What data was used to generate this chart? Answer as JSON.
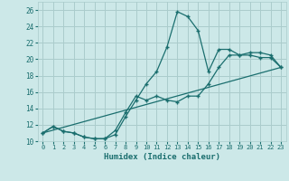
{
  "xlabel": "Humidex (Indice chaleur)",
  "bg_color": "#cce8e8",
  "grid_color": "#aacccc",
  "line_color": "#1a6e6e",
  "xlim": [
    -0.5,
    23.5
  ],
  "ylim": [
    10,
    27
  ],
  "xticks": [
    0,
    1,
    2,
    3,
    4,
    5,
    6,
    7,
    8,
    9,
    10,
    11,
    12,
    13,
    14,
    15,
    16,
    17,
    18,
    19,
    20,
    21,
    22,
    23
  ],
  "yticks": [
    10,
    12,
    14,
    16,
    18,
    20,
    22,
    24,
    26
  ],
  "curve1_x": [
    0,
    1,
    2,
    3,
    4,
    5,
    6,
    7,
    8,
    9,
    10,
    11,
    12,
    13,
    14,
    15,
    16,
    17,
    18,
    19,
    20,
    21,
    22,
    23
  ],
  "curve1_y": [
    11,
    11.8,
    11.2,
    11,
    10.5,
    10.3,
    10.3,
    10.8,
    13,
    15,
    17,
    18.5,
    21.5,
    25.8,
    25.2,
    23.5,
    18.5,
    21.2,
    21.2,
    20.5,
    20.5,
    20.2,
    20.2,
    19.0
  ],
  "curve2_x": [
    0,
    1,
    2,
    3,
    4,
    5,
    6,
    7,
    8,
    9,
    10,
    11,
    12,
    13,
    14,
    15,
    16,
    17,
    18,
    19,
    20,
    21,
    22,
    23
  ],
  "curve2_y": [
    11,
    11.8,
    11.2,
    11,
    10.5,
    10.3,
    10.3,
    11.3,
    13.5,
    15.5,
    15,
    15.5,
    15,
    14.8,
    15.5,
    15.5,
    17.0,
    19.0,
    20.5,
    20.5,
    20.8,
    20.8,
    20.5,
    19.0
  ],
  "line_x": [
    0,
    23
  ],
  "line_y": [
    11,
    19
  ]
}
